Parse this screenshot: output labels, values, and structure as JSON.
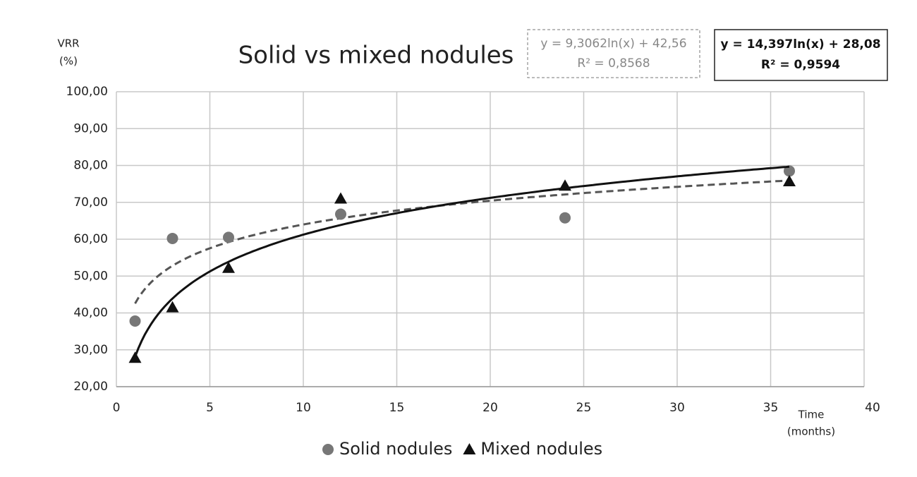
{
  "chart_data": {
    "type": "scatter",
    "title": "Solid vs mixed nodules",
    "x_label": [
      "Time",
      "(months)"
    ],
    "y_label": [
      "VRR",
      "(%)"
    ],
    "xlim": [
      0,
      40
    ],
    "xticks": [
      0,
      5,
      10,
      15,
      20,
      25,
      30,
      35,
      40
    ],
    "ylim": [
      20,
      100
    ],
    "yticks": [
      {
        "value": 20,
        "label": "20,00"
      },
      {
        "value": 30,
        "label": "30,00"
      },
      {
        "value": 40,
        "label": "40,00"
      },
      {
        "value": 50,
        "label": "50,00"
      },
      {
        "value": 60,
        "label": "60,00"
      },
      {
        "value": 70,
        "label": "70,00"
      },
      {
        "value": 80,
        "label": "80,00"
      },
      {
        "value": 90,
        "label": "90,00"
      },
      {
        "value": 100,
        "label": "100,00"
      }
    ],
    "grid": true,
    "legend": "bottom",
    "series": [
      {
        "name": "Solid nodules",
        "color": "#777777",
        "marker": "circle",
        "x": [
          1,
          3,
          6,
          12,
          24,
          36
        ],
        "values": [
          37.8,
          60.2,
          60.5,
          66.8,
          65.8,
          78.5
        ],
        "trendline": {
          "equation": "y = 9,3062ln(x) + 42,56",
          "r2": "R² = 0,8568",
          "a": 9.3062,
          "b": 42.56,
          "color": "#555555",
          "dashed": true
        }
      },
      {
        "name": "Mixed nodules",
        "color": "#111111",
        "marker": "triangle",
        "x": [
          1,
          3,
          6,
          12,
          24,
          36
        ],
        "values": [
          27.8,
          41.5,
          52.2,
          71.0,
          74.5,
          75.7
        ],
        "trendline": {
          "equation": "y = 14,397ln(x) + 28,08",
          "r2": "R² = 0,9594",
          "a": 14.397,
          "b": 28.08,
          "color": "#111111",
          "dashed": false
        }
      }
    ]
  }
}
